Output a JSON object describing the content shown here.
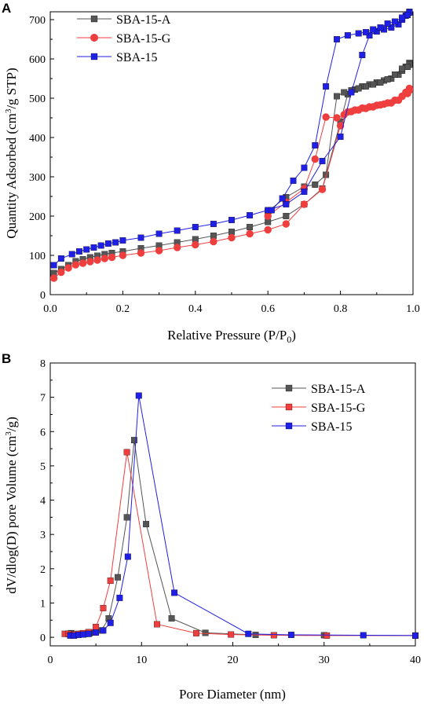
{
  "chart_data": [
    {
      "panel": "A",
      "type": "line",
      "xlabel": "Relative Pressure (P/P",
      "xlabel_sub": "0",
      "xlabel_end": ")",
      "ylabel": "Quantity Adsorbed (cm",
      "ylabel_sup": "3",
      "ylabel_end": "/g STP)",
      "xlim": [
        0,
        1.0
      ],
      "ylim": [
        0,
        720
      ],
      "xticks": [
        0,
        0.2,
        0.4,
        0.6,
        0.8,
        1.0
      ],
      "xtick_labels": [
        "0.0",
        "0.2",
        "0.4",
        "0.6",
        "0.8",
        "1.0"
      ],
      "yticks": [
        0,
        100,
        200,
        300,
        400,
        500,
        600,
        700
      ],
      "ytick_labels": [
        "0",
        "100",
        "200",
        "300",
        "400",
        "500",
        "600",
        "700"
      ],
      "grid": false,
      "legend": "top-left",
      "series": [
        {
          "name": "SBA-15-A",
          "color": "#555555",
          "marker": "square",
          "x": [
            0.01,
            0.03,
            0.05,
            0.07,
            0.09,
            0.11,
            0.13,
            0.15,
            0.17,
            0.2,
            0.25,
            0.3,
            0.35,
            0.4,
            0.45,
            0.5,
            0.55,
            0.6,
            0.65,
            0.7,
            0.75,
            0.8,
            0.82,
            0.84,
            0.86,
            0.88,
            0.9,
            0.92,
            0.94,
            0.96,
            0.97,
            0.98,
            0.99,
            0.99,
            0.985,
            0.97,
            0.95,
            0.93,
            0.91,
            0.89,
            0.87,
            0.85,
            0.83,
            0.81,
            0.79,
            0.76,
            0.73,
            0.7,
            0.65,
            0.6
          ],
          "y": [
            55,
            65,
            75,
            85,
            90,
            95,
            99,
            103,
            106,
            110,
            118,
            125,
            133,
            141,
            150,
            160,
            172,
            185,
            200,
            230,
            270,
            440,
            510,
            522,
            530,
            535,
            540,
            545,
            550,
            560,
            570,
            580,
            590,
            585,
            580,
            575,
            560,
            548,
            540,
            535,
            530,
            525,
            520,
            515,
            505,
            305,
            280,
            275,
            248,
            212
          ]
        },
        {
          "name": "SBA-15-G",
          "color": "#ef3e3e",
          "marker": "circle",
          "x": [
            0.01,
            0.03,
            0.05,
            0.07,
            0.09,
            0.11,
            0.13,
            0.15,
            0.17,
            0.2,
            0.25,
            0.3,
            0.35,
            0.4,
            0.45,
            0.5,
            0.55,
            0.6,
            0.65,
            0.7,
            0.75,
            0.8,
            0.82,
            0.84,
            0.86,
            0.88,
            0.9,
            0.92,
            0.94,
            0.96,
            0.97,
            0.98,
            0.99,
            0.99,
            0.985,
            0.97,
            0.95,
            0.93,
            0.91,
            0.89,
            0.87,
            0.85,
            0.83,
            0.81,
            0.79,
            0.76,
            0.73,
            0.7,
            0.65,
            0.6
          ],
          "y": [
            42,
            57,
            68,
            76,
            80,
            84,
            88,
            92,
            95,
            100,
            106,
            112,
            120,
            127,
            135,
            145,
            155,
            165,
            180,
            230,
            268,
            430,
            465,
            470,
            475,
            478,
            482,
            485,
            488,
            495,
            505,
            515,
            525,
            520,
            512,
            505,
            495,
            488,
            483,
            478,
            474,
            470,
            466,
            458,
            450,
            452,
            345,
            270,
            235,
            200
          ]
        },
        {
          "name": "SBA-15",
          "color": "#1f1fe6",
          "marker": "square",
          "x": [
            0.01,
            0.03,
            0.06,
            0.08,
            0.1,
            0.12,
            0.14,
            0.16,
            0.18,
            0.2,
            0.25,
            0.3,
            0.35,
            0.4,
            0.45,
            0.5,
            0.55,
            0.6,
            0.65,
            0.7,
            0.75,
            0.8,
            0.83,
            0.86,
            0.88,
            0.9,
            0.92,
            0.94,
            0.96,
            0.97,
            0.98,
            0.99,
            0.99,
            0.985,
            0.97,
            0.95,
            0.93,
            0.91,
            0.89,
            0.87,
            0.85,
            0.82,
            0.79,
            0.76,
            0.73,
            0.7,
            0.67,
            0.64,
            0.61
          ],
          "y": [
            75,
            92,
            103,
            110,
            115,
            120,
            125,
            130,
            133,
            138,
            145,
            155,
            163,
            172,
            180,
            190,
            202,
            215,
            230,
            262,
            340,
            402,
            515,
            610,
            660,
            670,
            675,
            680,
            688,
            700,
            710,
            720,
            718,
            712,
            705,
            695,
            690,
            680,
            675,
            668,
            665,
            660,
            650,
            530,
            380,
            323,
            290,
            245,
            215
          ]
        }
      ]
    },
    {
      "panel": "B",
      "type": "line",
      "xlabel": "Pore Diameter (nm)",
      "ylabel": "dV/dlog(D) pore Volume (cm",
      "ylabel_sup": "3",
      "ylabel_end": "/g)",
      "xlim": [
        0,
        40
      ],
      "ylim": [
        -0.25,
        8
      ],
      "xticks": [
        0,
        10,
        20,
        30,
        40
      ],
      "xtick_labels": [
        "0",
        "10",
        "20",
        "30",
        "40"
      ],
      "yticks": [
        0,
        1,
        2,
        3,
        4,
        5,
        6,
        7,
        8
      ],
      "ytick_labels": [
        "0",
        "1",
        "2",
        "3",
        "4",
        "5",
        "6",
        "7",
        "8"
      ],
      "grid": false,
      "legend": "top-right",
      "series": [
        {
          "name": "SBA-15-A",
          "color": "#555555",
          "marker": "square",
          "x": [
            2.0,
            2.3,
            2.7,
            3.0,
            3.4,
            3.8,
            4.3,
            4.9,
            5.6,
            6.4,
            7.4,
            8.4,
            9.2,
            10.5,
            13.3,
            17.0,
            22.5,
            30.0,
            40.0
          ],
          "y": [
            0.1,
            0.12,
            0.08,
            0.08,
            0.1,
            0.1,
            0.12,
            0.14,
            0.2,
            0.55,
            1.75,
            3.5,
            5.75,
            3.3,
            0.55,
            0.13,
            0.07,
            0.06,
            0.05
          ]
        },
        {
          "name": "SBA-15-G",
          "color": "#ef3e3e",
          "marker": "square",
          "x": [
            1.6,
            2.0,
            2.3,
            2.7,
            3.1,
            3.6,
            4.2,
            5.0,
            5.8,
            6.6,
            8.4,
            11.7,
            16.0,
            19.8,
            24.5,
            30.3,
            40.0
          ],
          "y": [
            0.1,
            0.1,
            0.07,
            0.08,
            0.1,
            0.12,
            0.15,
            0.3,
            0.85,
            1.65,
            5.4,
            0.38,
            0.12,
            0.08,
            0.06,
            0.05,
            0.05
          ]
        },
        {
          "name": "SBA-15",
          "color": "#1f1fe6",
          "marker": "square",
          "x": [
            2.2,
            2.6,
            3.1,
            3.6,
            4.2,
            5.0,
            5.8,
            6.6,
            7.6,
            8.5,
            9.7,
            13.6,
            21.7,
            26.4,
            34.3,
            40.0
          ],
          "y": [
            0.05,
            0.05,
            0.07,
            0.08,
            0.1,
            0.14,
            0.2,
            0.42,
            1.15,
            2.35,
            7.05,
            1.3,
            0.1,
            0.07,
            0.06,
            0.05
          ]
        }
      ]
    }
  ]
}
